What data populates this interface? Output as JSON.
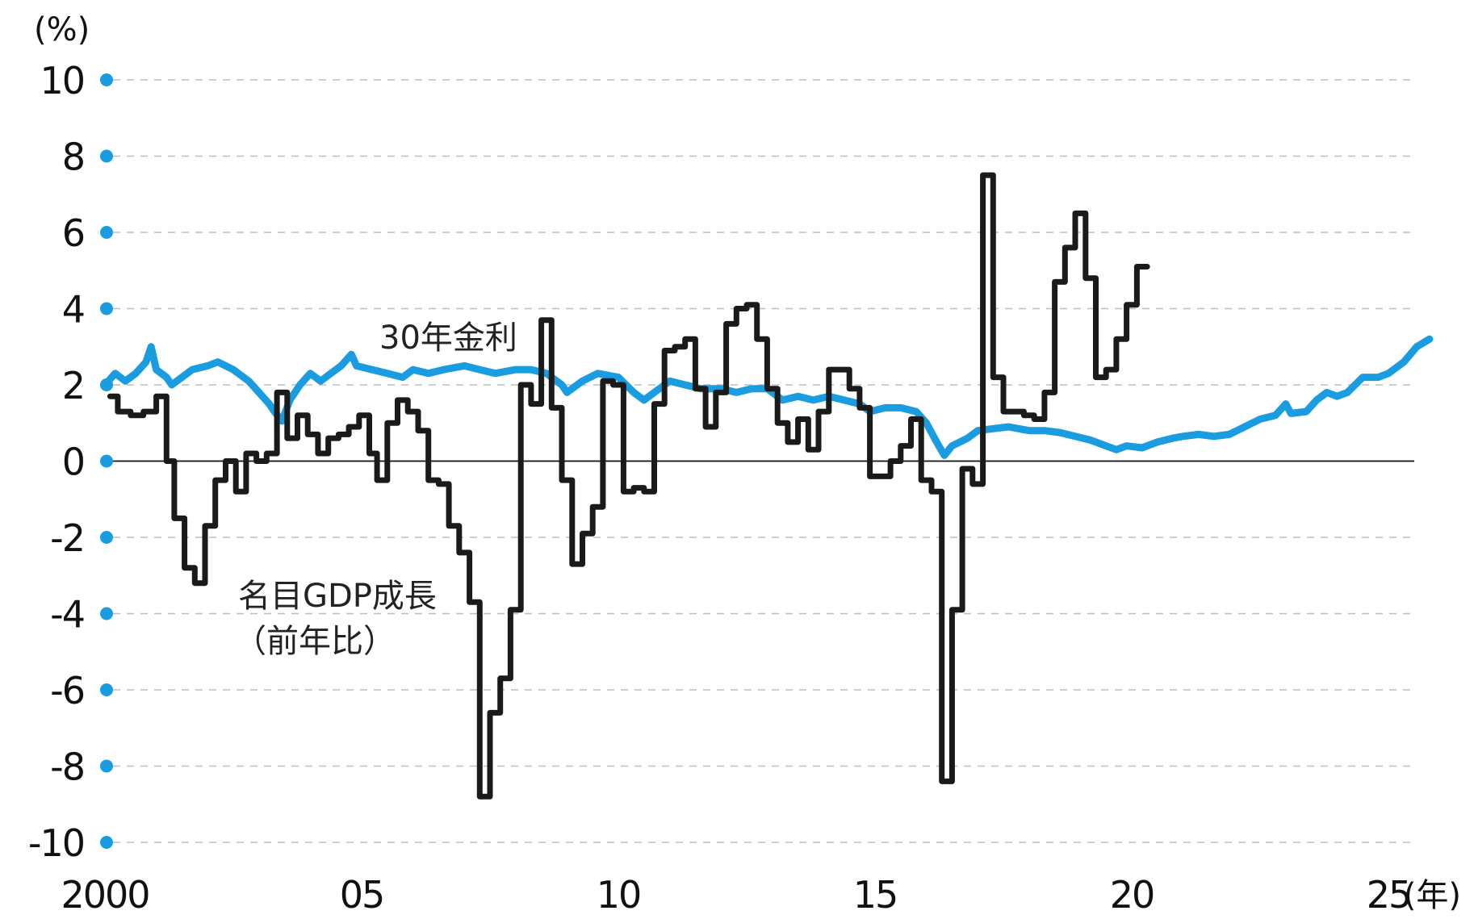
{
  "chart_data": {
    "type": "line",
    "y_unit": "(%)",
    "x_unit": "(年)",
    "xlim": [
      2000,
      2026.0
    ],
    "ylim": [
      -10,
      10
    ],
    "yticks": [
      10,
      8,
      6,
      4,
      2,
      0,
      -2,
      -4,
      -6,
      -8,
      -10
    ],
    "yticklabels": [
      "10",
      "8",
      "6",
      "4",
      "2",
      "0",
      "-2",
      "-4",
      "-6",
      "-8",
      "-10"
    ],
    "xticks": [
      2000,
      2005,
      2010,
      2015,
      2020,
      2025
    ],
    "xticklabels": [
      "2000",
      "05",
      "10",
      "15",
      "20",
      "25"
    ],
    "grid": true,
    "colors": {
      "bond": "#1a9de0",
      "gdp": "#1a1a1a",
      "marker": "#1a9de0",
      "grid": "#bdbdbd"
    },
    "series": [
      {
        "key": "bond",
        "name": "30年金利",
        "label_lines": [
          "30年金利"
        ],
        "points": [
          [
            2000.0,
            2.0
          ],
          [
            2000.2,
            2.3
          ],
          [
            2000.4,
            2.1
          ],
          [
            2000.6,
            2.3
          ],
          [
            2000.8,
            2.6
          ],
          [
            2000.9,
            3.0
          ],
          [
            2001.0,
            2.4
          ],
          [
            2001.2,
            2.2
          ],
          [
            2001.3,
            2.0
          ],
          [
            2001.5,
            2.2
          ],
          [
            2001.7,
            2.4
          ],
          [
            2002.0,
            2.5
          ],
          [
            2002.2,
            2.6
          ],
          [
            2002.5,
            2.4
          ],
          [
            2002.8,
            2.1
          ],
          [
            2003.0,
            1.8
          ],
          [
            2003.2,
            1.5
          ],
          [
            2003.3,
            1.3
          ],
          [
            2003.45,
            1.05
          ],
          [
            2003.6,
            1.6
          ],
          [
            2003.8,
            2.0
          ],
          [
            2004.0,
            2.3
          ],
          [
            2004.2,
            2.1
          ],
          [
            2004.4,
            2.3
          ],
          [
            2004.6,
            2.5
          ],
          [
            2004.8,
            2.8
          ],
          [
            2004.9,
            2.5
          ],
          [
            2005.2,
            2.4
          ],
          [
            2005.5,
            2.3
          ],
          [
            2005.8,
            2.2
          ],
          [
            2006.0,
            2.4
          ],
          [
            2006.3,
            2.3
          ],
          [
            2006.6,
            2.4
          ],
          [
            2007.0,
            2.5
          ],
          [
            2007.3,
            2.4
          ],
          [
            2007.6,
            2.3
          ],
          [
            2008.0,
            2.4
          ],
          [
            2008.3,
            2.4
          ],
          [
            2008.6,
            2.3
          ],
          [
            2008.9,
            2.0
          ],
          [
            2009.0,
            1.8
          ],
          [
            2009.3,
            2.1
          ],
          [
            2009.6,
            2.3
          ],
          [
            2010.0,
            2.2
          ],
          [
            2010.3,
            1.8
          ],
          [
            2010.5,
            1.6
          ],
          [
            2010.8,
            1.9
          ],
          [
            2011.0,
            2.1
          ],
          [
            2011.3,
            2.0
          ],
          [
            2011.6,
            1.9
          ],
          [
            2012.0,
            1.9
          ],
          [
            2012.3,
            1.8
          ],
          [
            2012.6,
            1.9
          ],
          [
            2012.9,
            1.9
          ],
          [
            2013.2,
            1.6
          ],
          [
            2013.5,
            1.7
          ],
          [
            2013.8,
            1.6
          ],
          [
            2014.1,
            1.7
          ],
          [
            2014.4,
            1.6
          ],
          [
            2014.7,
            1.5
          ],
          [
            2014.9,
            1.3
          ],
          [
            2015.2,
            1.4
          ],
          [
            2015.5,
            1.4
          ],
          [
            2015.8,
            1.3
          ],
          [
            2016.0,
            1.0
          ],
          [
            2016.2,
            0.5
          ],
          [
            2016.35,
            0.15
          ],
          [
            2016.5,
            0.4
          ],
          [
            2016.8,
            0.6
          ],
          [
            2017.0,
            0.8
          ],
          [
            2017.3,
            0.85
          ],
          [
            2017.6,
            0.9
          ],
          [
            2018.0,
            0.8
          ],
          [
            2018.3,
            0.8
          ],
          [
            2018.6,
            0.75
          ],
          [
            2018.9,
            0.65
          ],
          [
            2019.2,
            0.55
          ],
          [
            2019.5,
            0.4
          ],
          [
            2019.7,
            0.3
          ],
          [
            2019.9,
            0.4
          ],
          [
            2020.2,
            0.35
          ],
          [
            2020.5,
            0.5
          ],
          [
            2020.8,
            0.6
          ],
          [
            2021.0,
            0.65
          ],
          [
            2021.3,
            0.7
          ],
          [
            2021.6,
            0.65
          ],
          [
            2021.9,
            0.7
          ],
          [
            2022.2,
            0.9
          ],
          [
            2022.5,
            1.1
          ],
          [
            2022.8,
            1.2
          ],
          [
            2023.0,
            1.5
          ],
          [
            2023.1,
            1.25
          ],
          [
            2023.4,
            1.3
          ],
          [
            2023.6,
            1.6
          ],
          [
            2023.8,
            1.8
          ],
          [
            2024.0,
            1.7
          ],
          [
            2024.2,
            1.8
          ],
          [
            2024.5,
            2.2
          ],
          [
            2024.8,
            2.2
          ],
          [
            2025.0,
            2.3
          ],
          [
            2025.3,
            2.6
          ],
          [
            2025.55,
            3.0
          ],
          [
            2025.8,
            3.2
          ]
        ]
      },
      {
        "key": "gdp",
        "name": "名目GDP成長（前年比）",
        "label_lines": [
          "名目GDP成長",
          "（前年比）"
        ],
        "points": [
          [
            2000.1,
            1.7
          ],
          [
            2000.25,
            1.7
          ],
          [
            2000.25,
            1.3
          ],
          [
            2000.5,
            1.3
          ],
          [
            2000.5,
            1.2
          ],
          [
            2000.75,
            1.2
          ],
          [
            2000.75,
            1.3
          ],
          [
            2001.0,
            1.3
          ],
          [
            2001.0,
            1.7
          ],
          [
            2001.2,
            1.7
          ],
          [
            2001.2,
            0.0
          ],
          [
            2001.35,
            0.0
          ],
          [
            2001.35,
            -1.5
          ],
          [
            2001.55,
            -1.5
          ],
          [
            2001.55,
            -2.8
          ],
          [
            2001.75,
            -2.8
          ],
          [
            2001.75,
            -3.2
          ],
          [
            2001.95,
            -3.2
          ],
          [
            2001.95,
            -1.7
          ],
          [
            2002.15,
            -1.7
          ],
          [
            2002.15,
            -0.5
          ],
          [
            2002.35,
            -0.5
          ],
          [
            2002.35,
            0.0
          ],
          [
            2002.55,
            0.0
          ],
          [
            2002.55,
            -0.8
          ],
          [
            2002.75,
            -0.8
          ],
          [
            2002.75,
            0.2
          ],
          [
            2002.95,
            0.2
          ],
          [
            2002.95,
            0.0
          ],
          [
            2003.15,
            0.0
          ],
          [
            2003.15,
            0.2
          ],
          [
            2003.35,
            0.2
          ],
          [
            2003.35,
            1.8
          ],
          [
            2003.55,
            1.8
          ],
          [
            2003.55,
            0.6
          ],
          [
            2003.75,
            0.6
          ],
          [
            2003.75,
            1.2
          ],
          [
            2003.95,
            1.2
          ],
          [
            2003.95,
            0.7
          ],
          [
            2004.15,
            0.7
          ],
          [
            2004.15,
            0.2
          ],
          [
            2004.35,
            0.2
          ],
          [
            2004.35,
            0.6
          ],
          [
            2004.55,
            0.6
          ],
          [
            2004.55,
            0.7
          ],
          [
            2004.75,
            0.7
          ],
          [
            2004.75,
            0.9
          ],
          [
            2004.95,
            0.9
          ],
          [
            2004.95,
            1.2
          ],
          [
            2005.15,
            1.2
          ],
          [
            2005.15,
            0.2
          ],
          [
            2005.3,
            0.2
          ],
          [
            2005.3,
            -0.5
          ],
          [
            2005.5,
            -0.5
          ],
          [
            2005.5,
            1.0
          ],
          [
            2005.7,
            1.0
          ],
          [
            2005.7,
            1.6
          ],
          [
            2005.9,
            1.6
          ],
          [
            2005.9,
            1.3
          ],
          [
            2006.1,
            1.3
          ],
          [
            2006.1,
            0.8
          ],
          [
            2006.3,
            0.8
          ],
          [
            2006.3,
            -0.5
          ],
          [
            2006.5,
            -0.5
          ],
          [
            2006.5,
            -0.6
          ],
          [
            2006.7,
            -0.6
          ],
          [
            2006.7,
            -1.7
          ],
          [
            2006.9,
            -1.7
          ],
          [
            2006.9,
            -2.4
          ],
          [
            2007.1,
            -2.4
          ],
          [
            2007.1,
            -3.7
          ],
          [
            2007.3,
            -3.7
          ],
          [
            2007.3,
            -8.8
          ],
          [
            2007.5,
            -8.8
          ],
          [
            2007.5,
            -6.6
          ],
          [
            2007.7,
            -6.6
          ],
          [
            2007.7,
            -5.7
          ],
          [
            2007.9,
            -5.7
          ],
          [
            2007.9,
            -3.9
          ],
          [
            2008.1,
            -3.9
          ],
          [
            2008.1,
            2.0
          ],
          [
            2008.3,
            2.0
          ],
          [
            2008.3,
            1.5
          ],
          [
            2008.5,
            1.5
          ],
          [
            2008.5,
            3.7
          ],
          [
            2008.7,
            3.7
          ],
          [
            2008.7,
            1.4
          ],
          [
            2008.9,
            1.4
          ],
          [
            2008.9,
            -0.5
          ],
          [
            2009.1,
            -0.5
          ],
          [
            2009.1,
            -2.7
          ],
          [
            2009.3,
            -2.7
          ],
          [
            2009.3,
            -1.9
          ],
          [
            2009.5,
            -1.9
          ],
          [
            2009.5,
            -1.2
          ],
          [
            2009.7,
            -1.2
          ],
          [
            2009.7,
            2.1
          ],
          [
            2009.9,
            2.1
          ],
          [
            2009.9,
            2.0
          ],
          [
            2010.1,
            2.0
          ],
          [
            2010.1,
            -0.8
          ],
          [
            2010.3,
            -0.8
          ],
          [
            2010.3,
            -0.7
          ],
          [
            2010.5,
            -0.7
          ],
          [
            2010.5,
            -0.8
          ],
          [
            2010.7,
            -0.8
          ],
          [
            2010.7,
            1.5
          ],
          [
            2010.9,
            1.5
          ],
          [
            2010.9,
            2.9
          ],
          [
            2011.1,
            2.9
          ],
          [
            2011.1,
            3.0
          ],
          [
            2011.3,
            3.0
          ],
          [
            2011.3,
            3.2
          ],
          [
            2011.5,
            3.2
          ],
          [
            2011.5,
            1.9
          ],
          [
            2011.7,
            1.9
          ],
          [
            2011.7,
            0.9
          ],
          [
            2011.9,
            0.9
          ],
          [
            2011.9,
            1.8
          ],
          [
            2012.1,
            1.8
          ],
          [
            2012.1,
            3.6
          ],
          [
            2012.3,
            3.6
          ],
          [
            2012.3,
            4.0
          ],
          [
            2012.5,
            4.0
          ],
          [
            2012.5,
            4.1
          ],
          [
            2012.7,
            4.1
          ],
          [
            2012.7,
            3.2
          ],
          [
            2012.9,
            3.2
          ],
          [
            2012.9,
            1.9
          ],
          [
            2013.1,
            1.9
          ],
          [
            2013.1,
            1.0
          ],
          [
            2013.3,
            1.0
          ],
          [
            2013.3,
            0.5
          ],
          [
            2013.5,
            0.5
          ],
          [
            2013.5,
            1.1
          ],
          [
            2013.7,
            1.1
          ],
          [
            2013.7,
            0.3
          ],
          [
            2013.9,
            0.3
          ],
          [
            2013.9,
            1.3
          ],
          [
            2014.1,
            1.3
          ],
          [
            2014.1,
            2.4
          ],
          [
            2014.3,
            2.4
          ],
          [
            2014.3,
            2.4
          ],
          [
            2014.5,
            2.4
          ],
          [
            2014.5,
            1.9
          ],
          [
            2014.7,
            1.9
          ],
          [
            2014.7,
            1.4
          ],
          [
            2014.9,
            1.4
          ],
          [
            2014.9,
            -0.4
          ],
          [
            2015.1,
            -0.4
          ],
          [
            2015.1,
            -0.4
          ],
          [
            2015.3,
            -0.4
          ],
          [
            2015.3,
            0.0
          ],
          [
            2015.5,
            0.0
          ],
          [
            2015.5,
            0.4
          ],
          [
            2015.7,
            0.4
          ],
          [
            2015.7,
            1.1
          ],
          [
            2015.9,
            1.1
          ],
          [
            2015.9,
            -0.5
          ],
          [
            2016.1,
            -0.5
          ],
          [
            2016.1,
            -0.8
          ],
          [
            2016.3,
            -0.8
          ],
          [
            2016.3,
            -8.4
          ],
          [
            2016.5,
            -8.4
          ],
          [
            2016.5,
            -3.9
          ],
          [
            2016.7,
            -3.9
          ],
          [
            2016.7,
            -0.2
          ],
          [
            2016.9,
            -0.2
          ],
          [
            2016.9,
            -0.6
          ],
          [
            2017.1,
            -0.6
          ],
          [
            2017.1,
            7.5
          ],
          [
            2017.3,
            7.5
          ],
          [
            2017.3,
            2.2
          ],
          [
            2017.5,
            2.2
          ],
          [
            2017.5,
            1.3
          ],
          [
            2017.7,
            1.3
          ],
          [
            2017.7,
            1.3
          ],
          [
            2017.9,
            1.3
          ],
          [
            2017.9,
            1.2
          ],
          [
            2018.1,
            1.2
          ],
          [
            2018.1,
            1.1
          ],
          [
            2018.3,
            1.1
          ],
          [
            2018.3,
            1.8
          ],
          [
            2018.5,
            1.8
          ],
          [
            2018.5,
            4.7
          ],
          [
            2018.7,
            4.7
          ],
          [
            2018.7,
            5.6
          ],
          [
            2018.9,
            5.6
          ],
          [
            2018.9,
            6.5
          ],
          [
            2019.1,
            6.5
          ],
          [
            2019.1,
            4.8
          ],
          [
            2019.3,
            4.8
          ],
          [
            2019.3,
            2.2
          ],
          [
            2019.5,
            2.2
          ],
          [
            2019.5,
            2.4
          ],
          [
            2019.7,
            2.4
          ],
          [
            2019.7,
            3.2
          ],
          [
            2019.9,
            3.2
          ],
          [
            2019.9,
            4.1
          ],
          [
            2020.1,
            4.1
          ],
          [
            2020.1,
            5.1
          ],
          [
            2020.3,
            5.1
          ]
        ]
      }
    ]
  }
}
